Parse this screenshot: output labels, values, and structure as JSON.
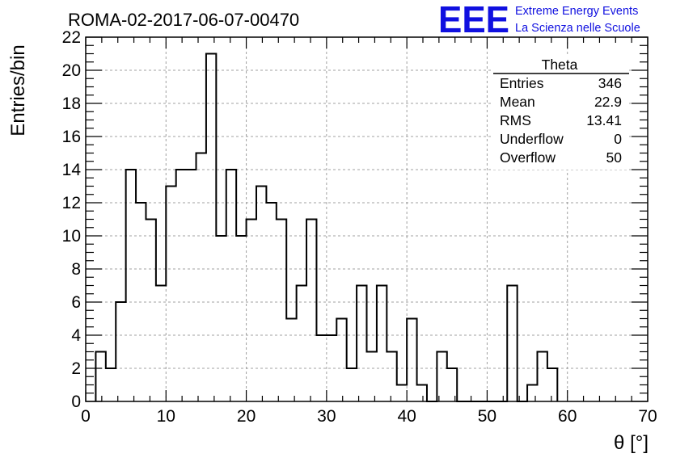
{
  "chart_data": {
    "type": "bar",
    "title": "ROMA-02-2017-06-07-00470",
    "xlabel": "θ [°]",
    "ylabel": "Entries/bin",
    "xlim": [
      0,
      70
    ],
    "ylim": [
      0,
      22
    ],
    "xticks": [
      0,
      10,
      20,
      30,
      40,
      50,
      60,
      70
    ],
    "yticks": [
      0,
      2,
      4,
      6,
      8,
      10,
      12,
      14,
      16,
      18,
      20,
      22
    ],
    "grid": true,
    "bin_width": 1.25,
    "bin_edges_start": 1.25,
    "values": [
      3,
      2,
      6,
      14,
      12,
      11,
      7,
      13,
      14,
      14,
      15,
      21,
      10,
      14,
      10,
      11,
      13,
      12,
      11,
      5,
      7,
      11,
      4,
      4,
      5,
      2,
      7,
      3,
      7,
      3,
      1,
      5,
      1,
      0,
      3,
      2,
      0,
      0,
      0,
      0,
      0,
      7,
      0,
      1,
      3,
      2
    ],
    "stats_box": {
      "title": "Theta",
      "rows": [
        {
          "label": "Entries",
          "value": "346"
        },
        {
          "label": "Mean",
          "value": "22.9"
        },
        {
          "label": "RMS",
          "value": "13.41"
        },
        {
          "label": "Underflow",
          "value": "0"
        },
        {
          "label": "Overflow",
          "value": "50"
        }
      ],
      "placement": "top-right"
    }
  },
  "logo": {
    "mark": "EEE",
    "line1": "Extreme Energy Events",
    "line2": "La Scienza nelle Scuole",
    "color": "#1010e0"
  },
  "colors": {
    "line": "#000000",
    "grid": "#a0a0a0"
  }
}
